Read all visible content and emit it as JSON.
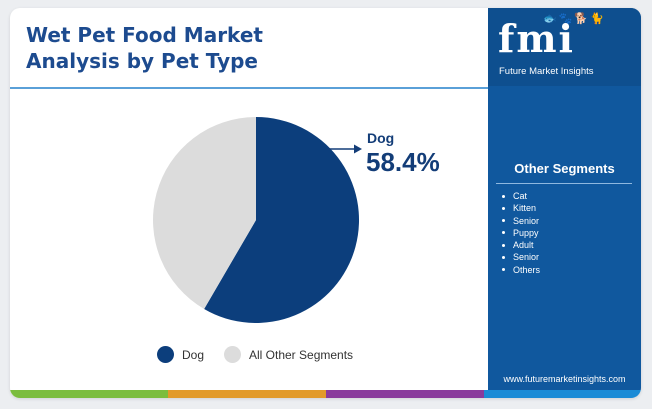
{
  "title_line1": "Wet Pet Food Market",
  "title_line2": "Analysis by Pet Type",
  "logo": {
    "letters": "fmi",
    "pets": "🐟🐾🐕🐈",
    "subtitle": "Future Market Insights"
  },
  "sidebar": {
    "heading": "Other Segments",
    "items": [
      "Cat",
      "Kitten",
      "Senior",
      "Puppy",
      "Adult",
      "Senior",
      "Others"
    ],
    "website": "www.futuremarketinsights.com"
  },
  "callout": {
    "label": "Dog",
    "value": "58.4%"
  },
  "colors": {
    "dog": "#0c3e7c",
    "other": "#dcdcdc",
    "sidebar": "#10589e",
    "title": "#1d4b8f",
    "footer": [
      "#7bbd3e",
      "#e29a2a",
      "#8a3b9c",
      "#1b8bd6"
    ]
  },
  "chart_data": {
    "type": "pie",
    "title": "Wet Pet Food Market Analysis by Pet Type",
    "series": [
      {
        "name": "Dog",
        "value": 58.4
      },
      {
        "name": "All Other Segments",
        "value": 41.6
      }
    ],
    "start_angle_deg": 0,
    "direction": "clockwise",
    "legend_position": "bottom"
  }
}
